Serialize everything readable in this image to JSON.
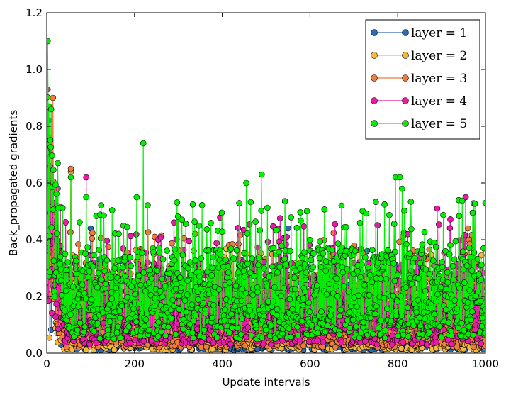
{
  "chart_data": {
    "type": "line",
    "xlabel": "Update intervals",
    "ylabel": "Back_propagated gradients",
    "xlim": [
      0,
      1000
    ],
    "ylim": [
      0,
      1.2
    ],
    "xticks": [
      "0",
      "200",
      "400",
      "600",
      "800",
      "1000"
    ],
    "yticks": [
      "0.0",
      "0.2",
      "0.4",
      "0.6",
      "0.8",
      "1.0",
      "1.2"
    ],
    "legend_position": "top-right",
    "grid": false,
    "sample_count": 1000,
    "series": [
      {
        "name": "layer = 1",
        "color": "#2b6cb0",
        "floor": 0.01,
        "base": 0.045,
        "spread": 0.28,
        "start_peak": 0.82,
        "spikes": [
          [
            5,
            0.82
          ],
          [
            100,
            0.44
          ],
          [
            550,
            0.44
          ],
          [
            730,
            0.36
          ]
        ]
      },
      {
        "name": "layer = 2",
        "color": "#f5b73c",
        "floor": 0.01,
        "base": 0.06,
        "spread": 0.3,
        "start_peak": 0.73,
        "spikes": [
          [
            8,
            0.73
          ],
          [
            55,
            0.64
          ]
        ]
      },
      {
        "name": "layer = 3",
        "color": "#f07c3c",
        "floor": 0.02,
        "base": 0.08,
        "spread": 0.33,
        "start_peak": 0.9,
        "spikes": [
          [
            14,
            0.9
          ],
          [
            55,
            0.65
          ],
          [
            960,
            0.44
          ]
        ]
      },
      {
        "name": "layer = 4",
        "color": "#e81aa8",
        "floor": 0.03,
        "base": 0.1,
        "spread": 0.35,
        "start_peak": 0.93,
        "spikes": [
          [
            2,
            0.93
          ],
          [
            90,
            0.62
          ],
          [
            300,
            0.48
          ],
          [
            955,
            0.55
          ],
          [
            890,
            0.51
          ]
        ]
      },
      {
        "name": "layer = 5",
        "color": "#00f000",
        "floor": 0.05,
        "base": 0.12,
        "spread": 0.37,
        "start_peak": 1.1,
        "spikes": [
          [
            2,
            1.1
          ],
          [
            5,
            0.87
          ],
          [
            10,
            0.86
          ],
          [
            25,
            0.67
          ],
          [
            55,
            0.62
          ],
          [
            90,
            0.55
          ],
          [
            205,
            0.55
          ],
          [
            220,
            0.74
          ],
          [
            455,
            0.6
          ],
          [
            490,
            0.63
          ],
          [
            795,
            0.62
          ],
          [
            805,
            0.62
          ],
          [
            810,
            0.58
          ],
          [
            1000,
            0.53
          ]
        ]
      }
    ]
  }
}
